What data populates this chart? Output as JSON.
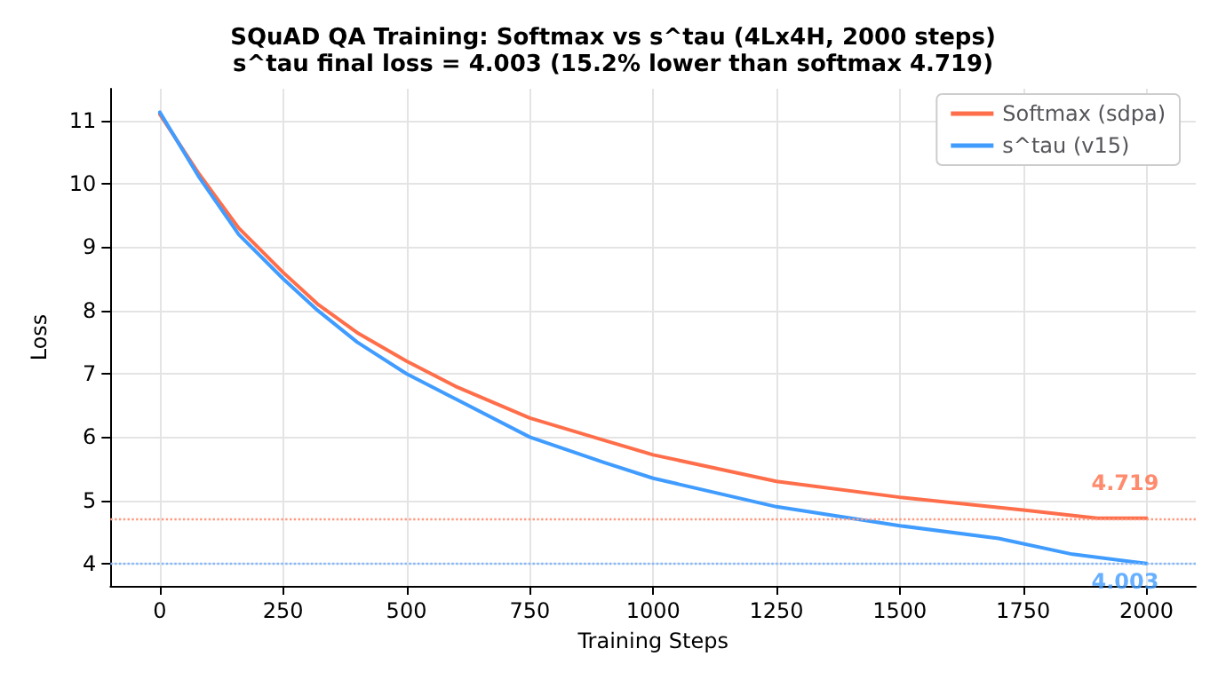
{
  "chart_data": {
    "type": "line",
    "title": "SQuAD QA Training: Softmax vs s^tau (4Lx4H, 2000 steps)",
    "subtitle": "s^tau final loss = 4.003 (15.2% lower than softmax 4.719)",
    "xlabel": "Training Steps",
    "ylabel": "Loss",
    "xlim": [
      -100,
      2100
    ],
    "xticks": [
      0,
      250,
      500,
      750,
      1000,
      1250,
      1500,
      1750,
      2000
    ],
    "ylim": [
      3.65,
      11.5
    ],
    "yticks": [
      4,
      5,
      6,
      7,
      8,
      9,
      10,
      11
    ],
    "grid": true,
    "legend": "top right",
    "line_style": "solid",
    "marker": "none",
    "series": [
      {
        "name": "Softmax (sdpa)",
        "color": "#ff6e4a",
        "x": [
          0,
          80,
          160,
          250,
          320,
          400,
          500,
          600,
          750,
          900,
          1000,
          1250,
          1500,
          1750,
          1900,
          2000
        ],
        "values": [
          11.1,
          10.15,
          9.3,
          8.6,
          8.1,
          7.65,
          7.2,
          6.8,
          6.3,
          5.95,
          5.72,
          5.3,
          5.05,
          4.85,
          4.72,
          4.719
        ]
      },
      {
        "name": "s^tau (v15)",
        "color": "#409cff",
        "x": [
          0,
          80,
          160,
          250,
          320,
          400,
          500,
          600,
          750,
          900,
          1000,
          1250,
          1500,
          1700,
          1850,
          2000
        ],
        "values": [
          11.13,
          10.1,
          9.2,
          8.5,
          8.0,
          7.5,
          7.0,
          6.6,
          6.0,
          5.6,
          5.35,
          4.9,
          4.6,
          4.4,
          4.15,
          4.003
        ]
      }
    ],
    "ref_lines": [
      {
        "axis": "y",
        "value": 4.719,
        "color": "#ff9a80",
        "line_style": "dotted"
      },
      {
        "axis": "y",
        "value": 4.003,
        "color": "#80b8ff",
        "line_style": "dotted"
      }
    ],
    "annotations": [
      {
        "text": "4.719",
        "x": 2000,
        "y": 4.719
      },
      {
        "text": "4.003",
        "x": 2000,
        "y": 4.003
      }
    ]
  }
}
